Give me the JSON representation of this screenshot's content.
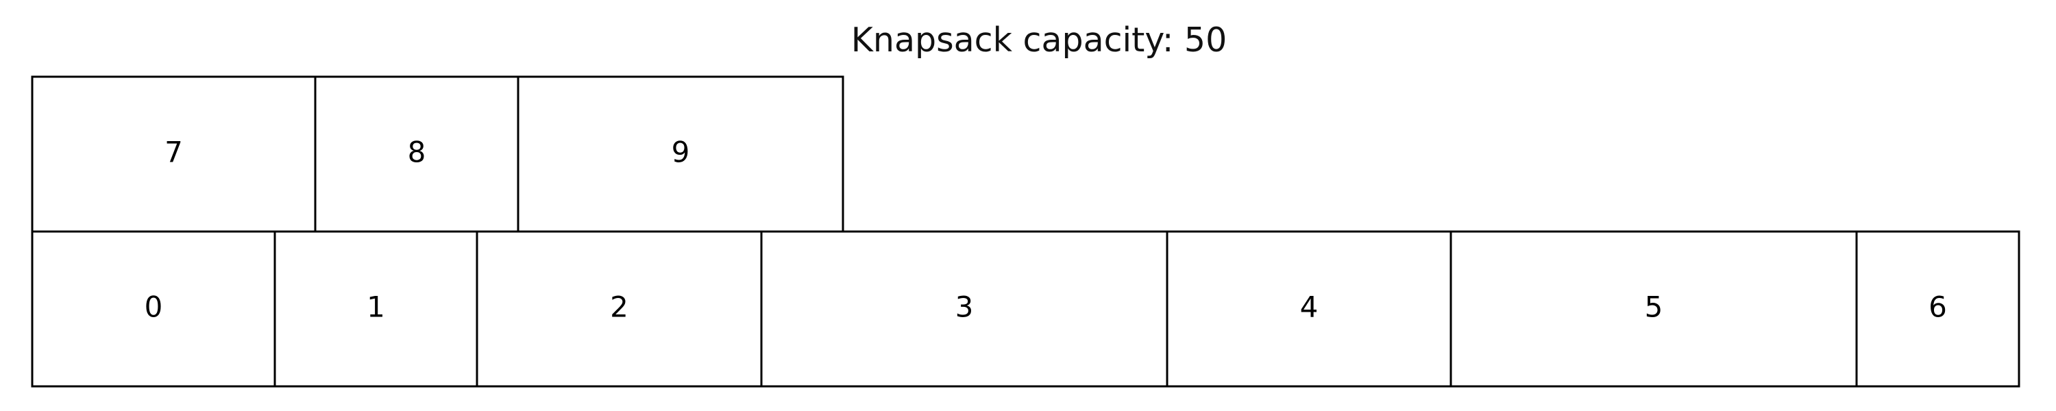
{
  "title": "Knapsack capacity: 50",
  "items": [
    {
      "label": "0"
    },
    {
      "label": "1"
    },
    {
      "label": "2"
    },
    {
      "label": "3"
    },
    {
      "label": "4"
    },
    {
      "label": "5"
    },
    {
      "label": "6"
    },
    {
      "label": "7"
    },
    {
      "label": "8"
    },
    {
      "label": "9"
    }
  ]
}
